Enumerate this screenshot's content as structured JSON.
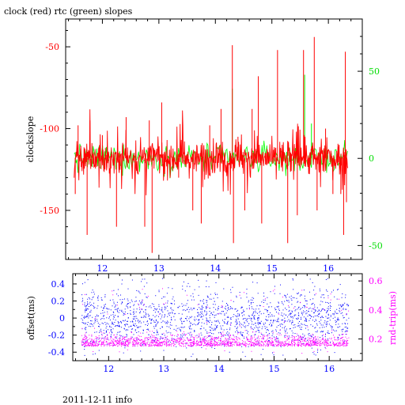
{
  "title": "clock (red) rtc (green) slopes",
  "footer": "2011-12-11 info",
  "colors": {
    "clock": "#ff0000",
    "rtc": "#00ff00",
    "offset": "#0000ff",
    "rndtrip": "#ff00ff",
    "axis": "#000000",
    "tick_red": "#ff0000",
    "tick_green": "#00dd00",
    "tick_blue": "#0000ff",
    "tick_magenta": "#ff00ff"
  },
  "chart_data": [
    {
      "type": "line",
      "title": "clock (red) rtc (green) slopes",
      "ylabel": "clockslope",
      "xlim": [
        11.35,
        16.6
      ],
      "ylim": [
        -180,
        -33
      ],
      "y2lim": [
        -58,
        80
      ],
      "xticks": [
        12,
        13,
        14,
        15,
        16
      ],
      "yticks": [
        -50,
        -100,
        -150
      ],
      "y2ticks": [
        50,
        0,
        -50
      ],
      "grid": false,
      "series": [
        {
          "name": "clock",
          "color": "red",
          "x_range": [
            11.5,
            16.35
          ],
          "baseline": -118,
          "band": [
            -130,
            -105
          ],
          "spikes": [
            {
              "x": 11.52,
              "y": -140
            },
            {
              "x": 11.57,
              "y": -98
            },
            {
              "x": 11.73,
              "y": -165
            },
            {
              "x": 11.78,
              "y": -95
            },
            {
              "x": 12.0,
              "y": -104
            },
            {
              "x": 12.25,
              "y": -160
            },
            {
              "x": 12.42,
              "y": -93
            },
            {
              "x": 12.75,
              "y": -160
            },
            {
              "x": 12.83,
              "y": -95
            },
            {
              "x": 12.88,
              "y": -176
            },
            {
              "x": 13.05,
              "y": -84
            },
            {
              "x": 13.35,
              "y": -130
            },
            {
              "x": 13.6,
              "y": -150
            },
            {
              "x": 13.75,
              "y": -158
            },
            {
              "x": 13.9,
              "y": -98
            },
            {
              "x": 14.1,
              "y": -88
            },
            {
              "x": 14.3,
              "y": -49
            },
            {
              "x": 14.32,
              "y": -170
            },
            {
              "x": 14.4,
              "y": -105
            },
            {
              "x": 14.52,
              "y": -150
            },
            {
              "x": 14.65,
              "y": -88
            },
            {
              "x": 14.76,
              "y": -68
            },
            {
              "x": 14.82,
              "y": -158
            },
            {
              "x": 15.1,
              "y": -52
            },
            {
              "x": 15.28,
              "y": -170
            },
            {
              "x": 15.45,
              "y": -153
            },
            {
              "x": 15.56,
              "y": -52
            },
            {
              "x": 15.75,
              "y": -44
            },
            {
              "x": 15.8,
              "y": -150
            },
            {
              "x": 15.95,
              "y": -100
            },
            {
              "x": 16.08,
              "y": -140
            },
            {
              "x": 16.22,
              "y": -140
            },
            {
              "x": 16.27,
              "y": -165
            },
            {
              "x": 16.3,
              "y": -53
            },
            {
              "x": 16.32,
              "y": -145
            }
          ]
        },
        {
          "name": "rtc",
          "color": "green",
          "axis": "right",
          "x_range": [
            11.5,
            16.35
          ],
          "baseline": 0,
          "spikes": [
            {
              "x": 14.3,
              "y": 40
            },
            {
              "x": 15.58,
              "y": 48
            },
            {
              "x": 15.7,
              "y": 20
            }
          ]
        }
      ]
    },
    {
      "type": "scatter",
      "ylabel": "offset(ms)",
      "y2label": "rnd-trip(ms)",
      "xlim": [
        11.35,
        16.6
      ],
      "ylim": [
        -0.5,
        0.52
      ],
      "y2lim": [
        0.05,
        0.65
      ],
      "xticks": [
        12,
        13,
        14,
        15,
        16
      ],
      "yticks": [
        0.4,
        0.2,
        0,
        -0.2,
        -0.4
      ],
      "y2ticks": [
        0.6,
        0.4,
        0.2
      ],
      "grid": false,
      "series": [
        {
          "name": "offset",
          "color": "blue",
          "x_range": [
            11.5,
            16.35
          ],
          "center": 0.0,
          "spread": 0.28,
          "bounds": [
            -0.45,
            0.47
          ]
        },
        {
          "name": "rnd-trip",
          "color": "magenta",
          "axis": "right",
          "x_range": [
            11.5,
            16.35
          ],
          "center": 0.18,
          "spread": 0.06,
          "bounds": [
            0.1,
            0.55
          ]
        }
      ]
    }
  ]
}
